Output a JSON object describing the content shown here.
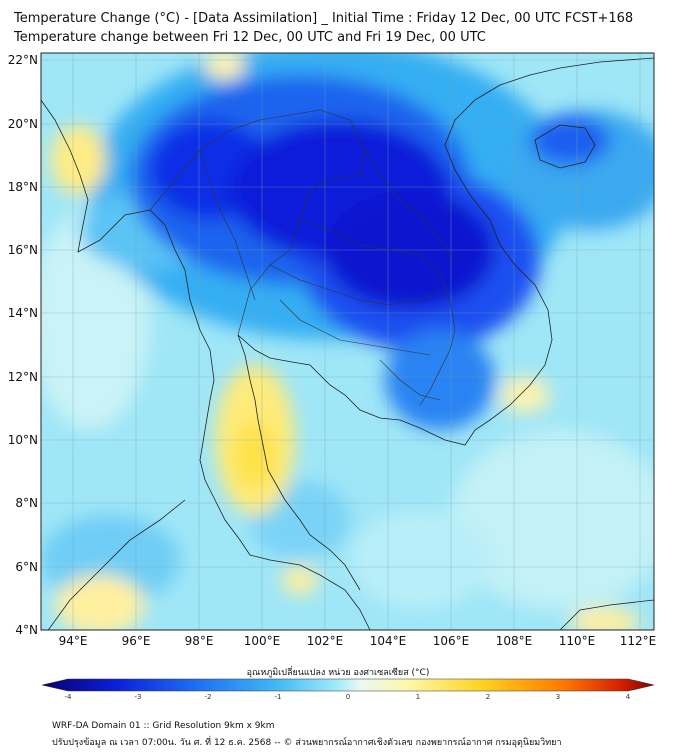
{
  "title_line1": "Temperature Change (°C) - [Data Assimilation] _ Initial Time : Friday 12 Dec, 00 UTC FCST+168",
  "title_line2": "Temperature change between Fri 12 Dec, 00 UTC and Fri 19 Dec, 00 UTC",
  "lat_ticks": [
    "22°N",
    "20°N",
    "18°N",
    "16°N",
    "14°N",
    "12°N",
    "10°N",
    "8°N",
    "6°N",
    "4°N"
  ],
  "lon_ticks": [
    "94°E",
    "96°E",
    "98°E",
    "100°E",
    "102°E",
    "104°E",
    "106°E",
    "108°E",
    "110°E",
    "112°E"
  ],
  "colorbar": {
    "label": "อุณหภูมิเปลี่ยนแปลง หน่วย องศาเซลเซียส (°C)",
    "ticks": [
      "-4",
      "-3",
      "-2",
      "-1",
      "0",
      "1",
      "2",
      "3",
      "4"
    ],
    "colors": [
      "#08006b",
      "#0a1fd6",
      "#1f6df2",
      "#3fb6f5",
      "#9feafa",
      "#e8f9f2",
      "#fff7a6",
      "#ffd21f",
      "#ff7b00",
      "#d41c00",
      "#7a0000"
    ]
  },
  "footer_line1": "WRF-DA Domain 01 :: Grid Resolution 9km x 9km",
  "footer_line2": "ปรับปรุงข้อมูล ณ เวลา 07:00น. วัน ศ. ที่ 12 ธ.ค. 2568 -- © ส่วนพยากรณ์อากาศเชิงตัวเลข กองพยากรณ์อากาศ กรมอุตุนิยมวิทยา"
}
